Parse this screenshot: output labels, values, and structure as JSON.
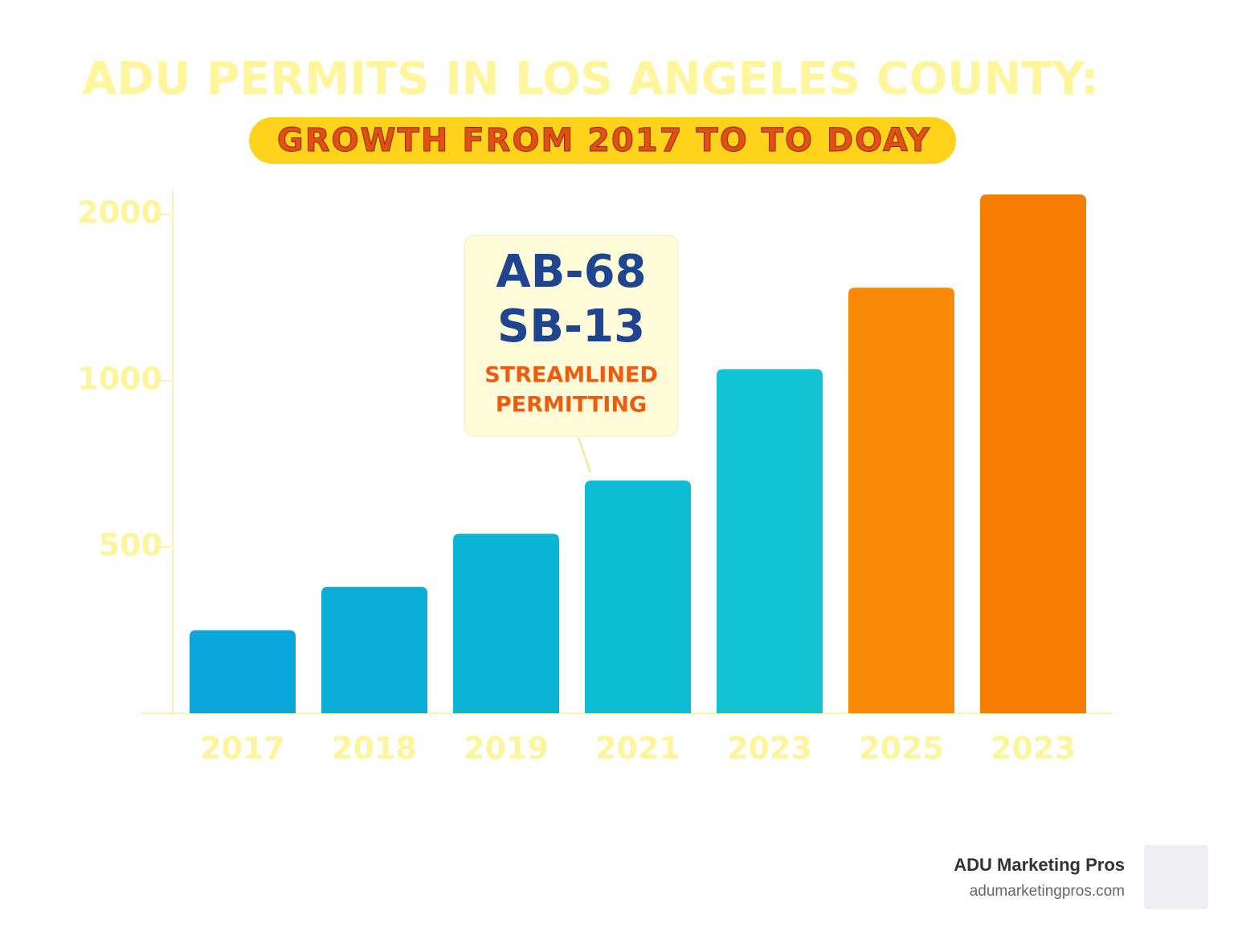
{
  "chart_data": {
    "type": "bar",
    "title": "ADU PERMITS IN LOS ANGELES COUNTY:",
    "subtitle": "GROWTH FROM 2017 TO TO DOAY",
    "categories": [
      "2017",
      "2018",
      "2019",
      "2021",
      "2023",
      "2025",
      "2023"
    ],
    "values": [
      250,
      380,
      540,
      700,
      1070,
      1560,
      2120
    ],
    "colors": [
      "#0aa6dc",
      "#0aadd8",
      "#0bb5d5",
      "#0cbcd3",
      "#12c3d1",
      "#f98a06",
      "#f77d01"
    ],
    "ylim": [
      0,
      2150
    ],
    "yticks": [
      500,
      1000,
      2000
    ],
    "annotation": {
      "lines": [
        "AB-68",
        "SB-13",
        "STREAMLINED",
        "PERMITTING"
      ]
    }
  },
  "brand": {
    "name": "ADU Marketing Pros",
    "url": "adumarketingpros.com"
  }
}
